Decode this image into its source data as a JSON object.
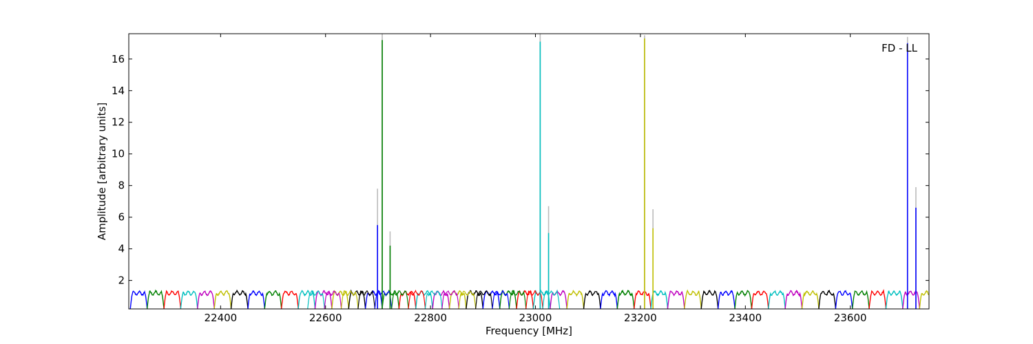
{
  "chart_data": {
    "type": "line",
    "annotation": "FD - LL",
    "xlabel": "Frequency [MHz]",
    "ylabel": "Amplitude [arbitrary units]",
    "xlim": [
      22225,
      23750
    ],
    "ylim": [
      0.2,
      17.6
    ],
    "xticks": [
      22400,
      22600,
      22800,
      23000,
      23200,
      23400,
      23600
    ],
    "yticks": [
      2,
      4,
      6,
      8,
      10,
      12,
      14,
      16
    ],
    "grid": false,
    "legend": "none",
    "palette": [
      "#0000ff",
      "#008000",
      "#ff0000",
      "#00bfbf",
      "#bf00bf",
      "#bfbf00",
      "#000000"
    ],
    "band_width_mhz": 32,
    "band_plateau": 1.2,
    "bands_start_mhz": 22228,
    "bands_end_mhz": 23745,
    "overlap_bands_start_mhz": 22550,
    "overlap_bands_end_mhz": 23010,
    "peaks": [
      {
        "x": 22699,
        "y": 5.5,
        "gray_y": 7.8,
        "color": "#0000ff"
      },
      {
        "x": 22708,
        "y": 17.2,
        "gray_y": 17.6,
        "color": "#008000"
      },
      {
        "x": 22723,
        "y": 4.2,
        "gray_y": 5.1,
        "color": "#008000"
      },
      {
        "x": 23009,
        "y": 17.1,
        "gray_y": 17.6,
        "color": "#00bfbf"
      },
      {
        "x": 23025,
        "y": 5.0,
        "gray_y": 6.7,
        "color": "#00bfbf"
      },
      {
        "x": 23208,
        "y": 17.3,
        "gray_y": 17.5,
        "color": "#bfbf00"
      },
      {
        "x": 23224,
        "y": 5.3,
        "gray_y": 6.5,
        "color": "#bfbf00"
      },
      {
        "x": 23709,
        "y": 17.0,
        "gray_y": 17.4,
        "color": "#0000ff"
      },
      {
        "x": 23725,
        "y": 6.6,
        "gray_y": 7.9,
        "color": "#0000ff"
      }
    ]
  }
}
